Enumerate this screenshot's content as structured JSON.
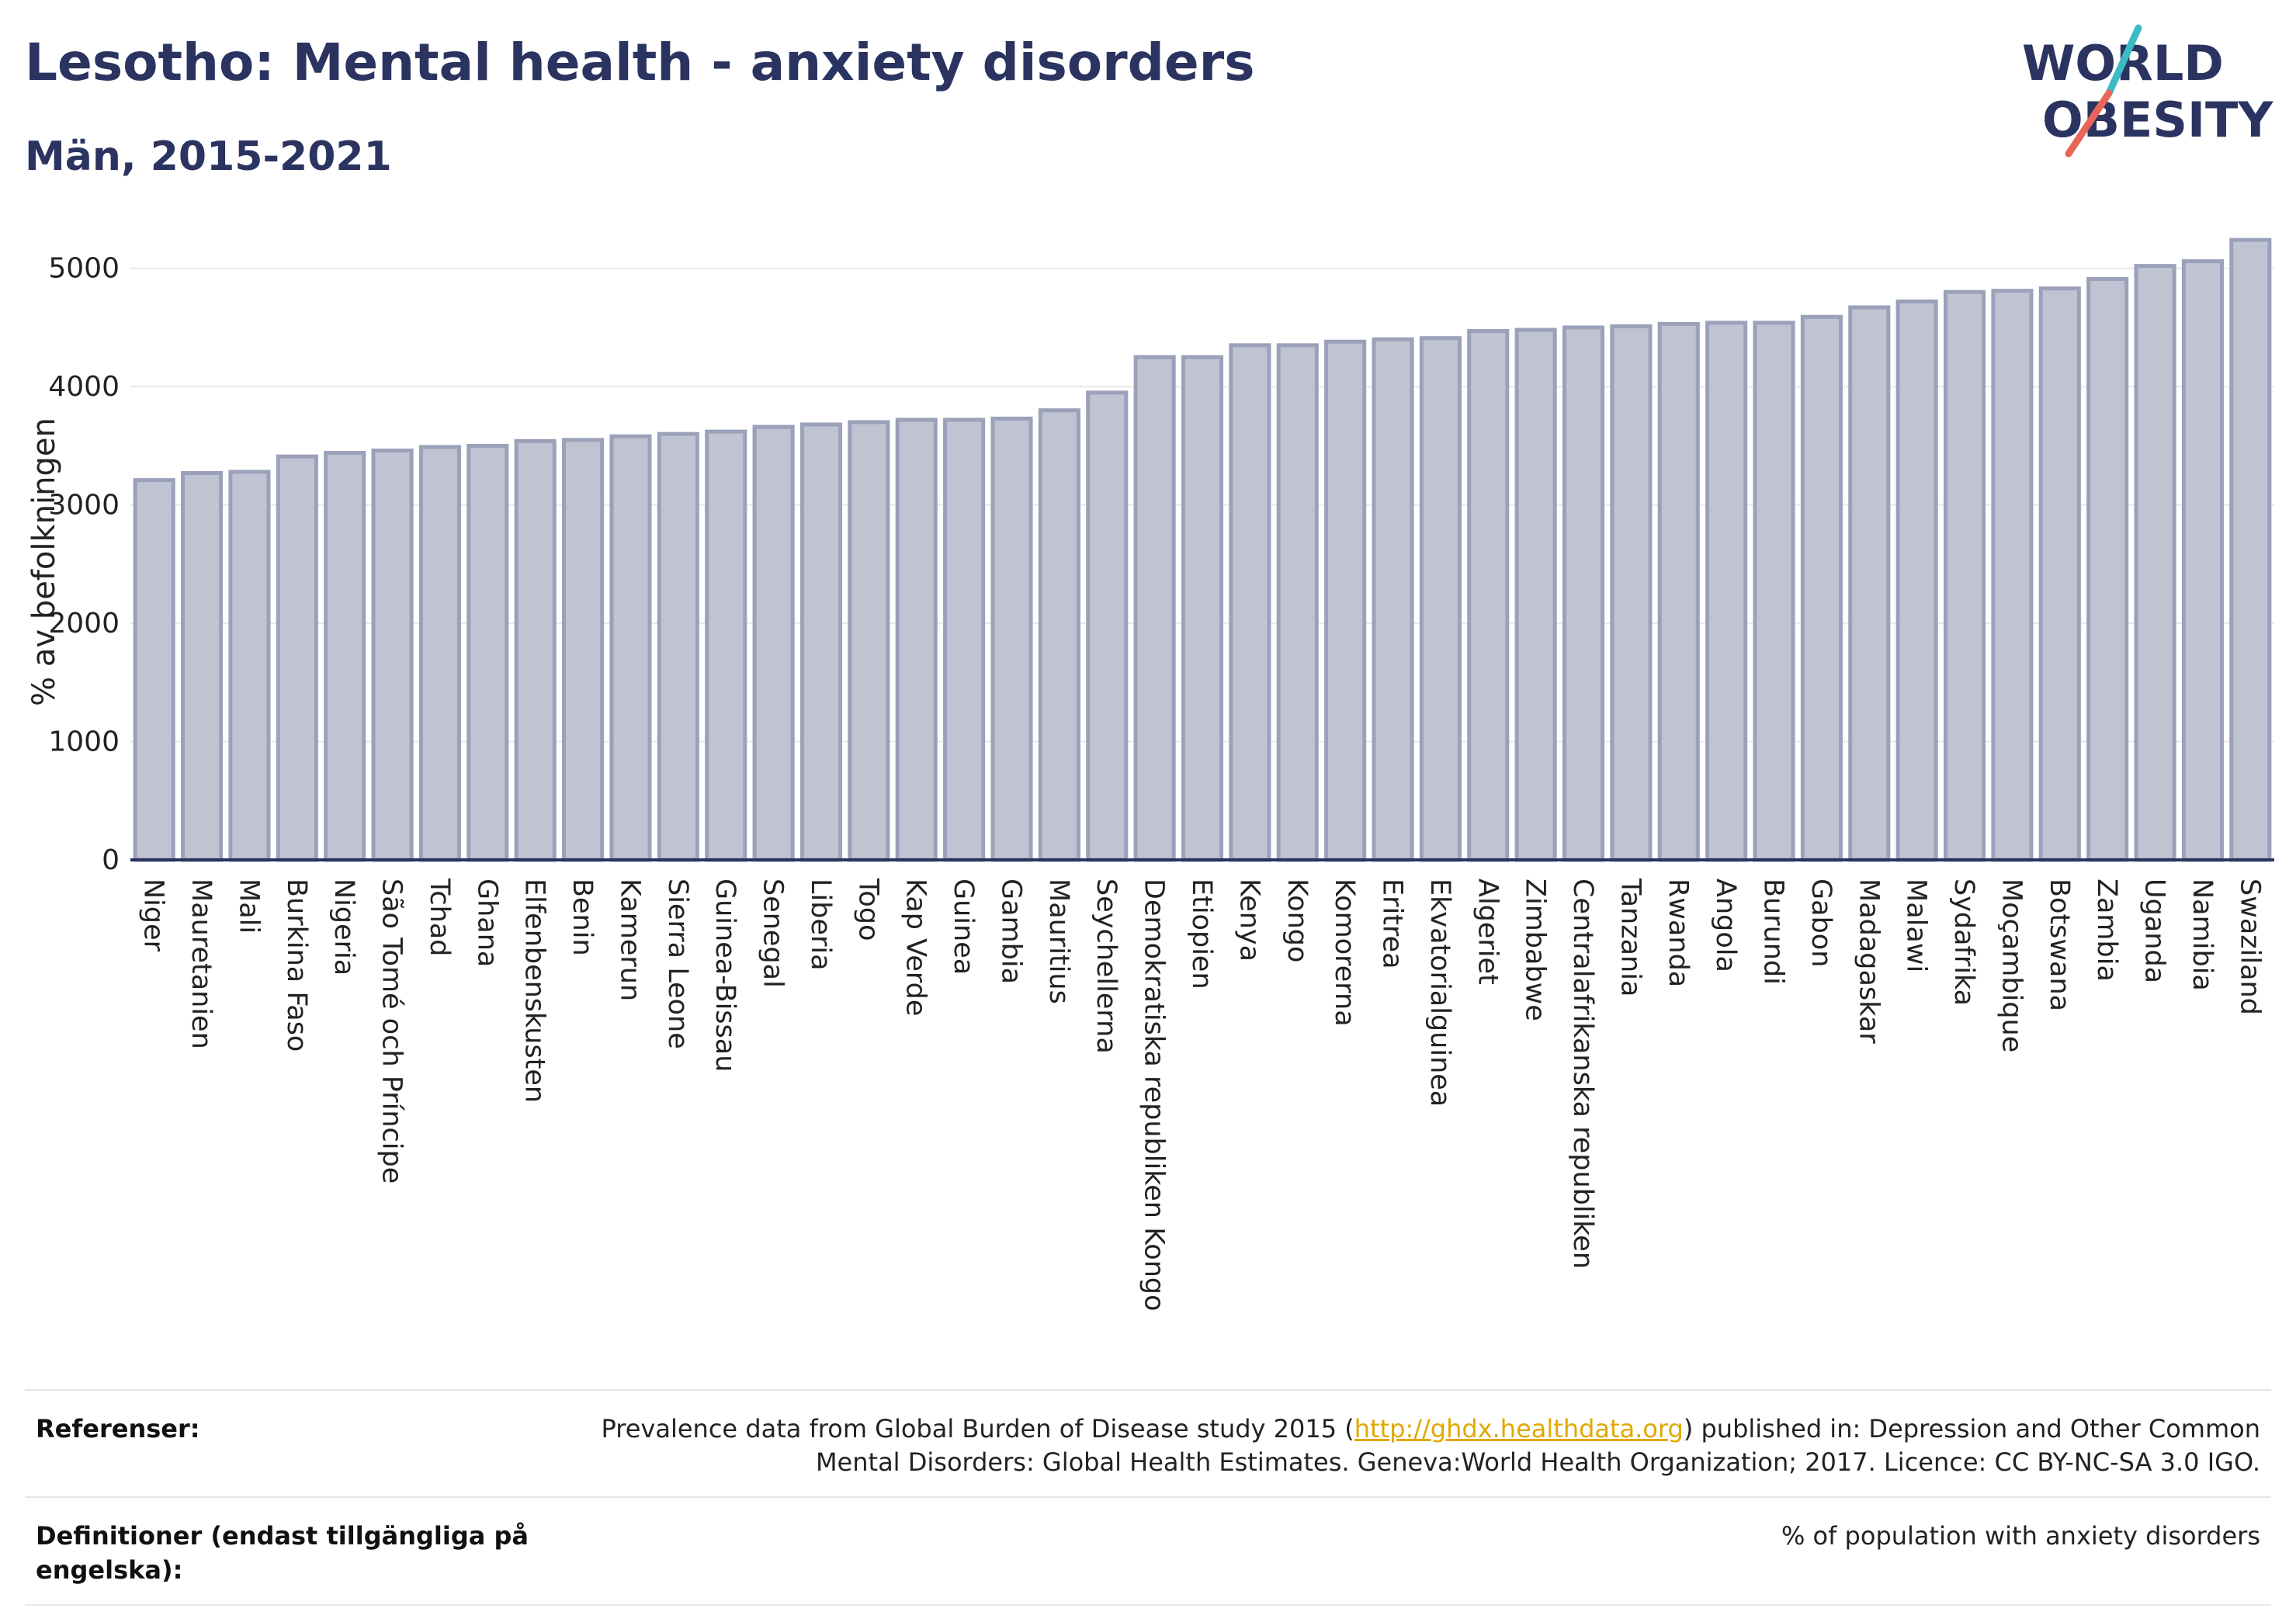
{
  "header": {
    "title": "Lesotho: Mental health - anxiety disorders",
    "subtitle": "Män, 2015-2021"
  },
  "logo": {
    "line1": "WORLD",
    "line2": "OBESITY",
    "colors": {
      "text": "#2b3460",
      "slash_top": "#3bbcc4",
      "slash_bottom": "#e8655a"
    }
  },
  "chart_data": {
    "type": "bar",
    "title": "",
    "xlabel": "",
    "ylabel": "% av befolkningen",
    "ylim": [
      0,
      5300
    ],
    "yticks": [
      0,
      1000,
      2000,
      3000,
      4000,
      5000
    ],
    "grid": true,
    "bar_color": "#bfc3d2",
    "bar_edge_color": "#9aa1b9",
    "categories": [
      "Niger",
      "Mauretanien",
      "Mali",
      "Burkina Faso",
      "Nigeria",
      "São Tomé och Príncipe",
      "Tchad",
      "Ghana",
      "Elfenbenskusten",
      "Benin",
      "Kamerun",
      "Sierra Leone",
      "Guinea-Bissau",
      "Senegal",
      "Liberia",
      "Togo",
      "Kap Verde",
      "Guinea",
      "Gambia",
      "Mauritius",
      "Seychellerna",
      "Demokratiska republiken Kongo",
      "Etiopien",
      "Kenya",
      "Kongo",
      "Komorerna",
      "Eritrea",
      "Ekvatorialguinea",
      "Algeriet",
      "Zimbabwe",
      "Centralafrikanska republiken",
      "Tanzania",
      "Rwanda",
      "Angola",
      "Burundi",
      "Gabon",
      "Madagaskar",
      "Malawi",
      "Sydafrika",
      "Moçambique",
      "Botswana",
      "Zambia",
      "Uganda",
      "Namibia",
      "Swaziland"
    ],
    "values": [
      3210,
      3270,
      3280,
      3410,
      3440,
      3460,
      3490,
      3500,
      3540,
      3550,
      3580,
      3600,
      3620,
      3660,
      3680,
      3700,
      3720,
      3720,
      3730,
      3800,
      3950,
      4250,
      4250,
      4350,
      4350,
      4380,
      4400,
      4410,
      4470,
      4480,
      4500,
      4510,
      4530,
      4540,
      4540,
      4590,
      4670,
      4720,
      4800,
      4810,
      4830,
      4910,
      5020,
      5060,
      5240
    ]
  },
  "footer": {
    "references_label": "Referenser:",
    "references_pre": "Prevalence data from Global Burden of Disease study 2015 (",
    "references_link": "http://ghdx.healthdata.org",
    "references_post": ") published in: Depression and Other Common Mental Disorders: Global Health Estimates. Geneva:World Health Organization; 2017. Licence: CC BY-NC-SA 3.0 IGO.",
    "definitions_label": "Definitioner (endast tillgängliga på engelska):",
    "definitions_text": "% of population with anxiety disorders"
  }
}
